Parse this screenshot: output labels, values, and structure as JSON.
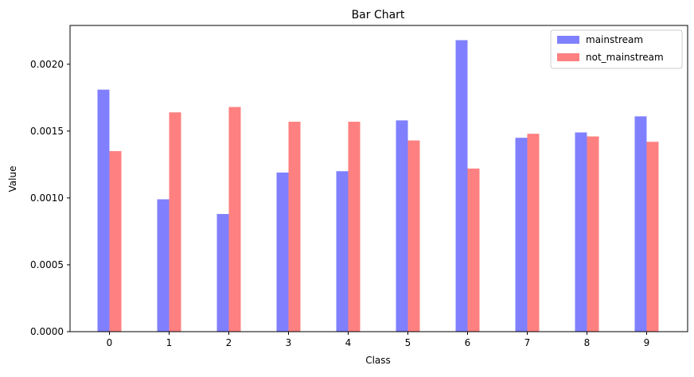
{
  "chart_data": {
    "type": "bar",
    "title": "Bar Chart",
    "xlabel": "Class",
    "ylabel": "Value",
    "categories": [
      "0",
      "1",
      "2",
      "3",
      "4",
      "5",
      "6",
      "7",
      "8",
      "9"
    ],
    "series": [
      {
        "name": "mainstream",
        "color": "#8080ff",
        "values": [
          0.00181,
          0.00099,
          0.00088,
          0.00119,
          0.0012,
          0.00158,
          0.00218,
          0.00145,
          0.00149,
          0.00161
        ]
      },
      {
        "name": "not_mainstream",
        "color": "#ff8080",
        "values": [
          0.00135,
          0.00164,
          0.00168,
          0.00157,
          0.00157,
          0.00143,
          0.00122,
          0.00148,
          0.00146,
          0.00142
        ]
      }
    ],
    "ylim": [
      0,
      0.00229
    ],
    "yticks": [
      "0.0000",
      "0.0005",
      "0.0010",
      "0.0015",
      "0.0020"
    ],
    "ytick_values": [
      0,
      0.0005,
      0.001,
      0.0015,
      0.002
    ],
    "legend_position": "top-right",
    "grid": false
  }
}
